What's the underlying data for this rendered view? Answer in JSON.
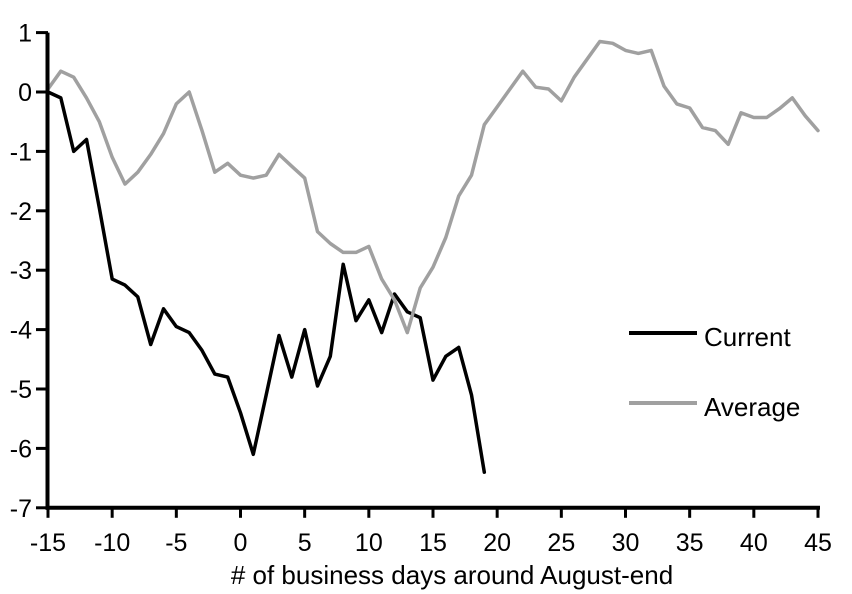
{
  "figure": {
    "background_color": "#ffffff",
    "axis_color": "#000000",
    "text_color": "#000000"
  },
  "chart_data": {
    "type": "line",
    "title": "",
    "xlabel": "# of business days around August-end",
    "ylabel": "",
    "xlim": [
      -15,
      45
    ],
    "ylim": [
      -7,
      1
    ],
    "x_ticks": [
      -15,
      -10,
      -5,
      0,
      5,
      10,
      15,
      20,
      25,
      30,
      35,
      40,
      45
    ],
    "y_ticks": [
      1,
      0,
      -1,
      -2,
      -3,
      -4,
      -5,
      -6,
      -7
    ],
    "grid": false,
    "legend_position": "center-right",
    "series": [
      {
        "name": "Current",
        "color": "#000000",
        "x": [
          -15,
          -14,
          -13,
          -12,
          -11,
          -10,
          -9,
          -8,
          -7,
          -6,
          -5,
          -4,
          -3,
          -2,
          -1,
          0,
          1,
          2,
          3,
          4,
          5,
          6,
          7,
          8,
          9,
          10,
          11,
          12,
          13,
          14,
          15,
          16,
          17,
          18,
          19
        ],
        "values": [
          0,
          -0.1,
          -1.0,
          -0.8,
          -1.95,
          -3.15,
          -3.25,
          -3.45,
          -4.25,
          -3.65,
          -3.95,
          -4.05,
          -4.35,
          -4.75,
          -4.8,
          -5.4,
          -6.1,
          -5.1,
          -4.1,
          -4.8,
          -4.0,
          -4.95,
          -4.45,
          -2.9,
          -3.85,
          -3.5,
          -4.05,
          -3.4,
          -3.7,
          -3.8,
          -4.85,
          -4.45,
          -4.3,
          -5.1,
          -6.4
        ]
      },
      {
        "name": "Average",
        "color": "#a0a0a0",
        "x": [
          -15,
          -14,
          -13,
          -12,
          -11,
          -10,
          -9,
          -8,
          -7,
          -6,
          -5,
          -4,
          -3,
          -2,
          -1,
          0,
          1,
          2,
          3,
          4,
          5,
          6,
          7,
          8,
          9,
          10,
          11,
          12,
          13,
          14,
          15,
          16,
          17,
          18,
          19,
          20,
          21,
          22,
          23,
          24,
          25,
          26,
          27,
          28,
          29,
          30,
          31,
          32,
          33,
          34,
          35,
          36,
          37,
          38,
          39,
          40,
          41,
          42,
          43,
          44,
          45
        ],
        "values": [
          0.05,
          0.35,
          0.25,
          -0.1,
          -0.5,
          -1.1,
          -1.55,
          -1.35,
          -1.05,
          -0.7,
          -0.2,
          0.0,
          -0.65,
          -1.35,
          -1.2,
          -1.4,
          -1.45,
          -1.4,
          -1.05,
          -1.25,
          -1.45,
          -2.35,
          -2.55,
          -2.7,
          -2.7,
          -2.6,
          -3.15,
          -3.5,
          -4.05,
          -3.3,
          -2.95,
          -2.45,
          -1.75,
          -1.4,
          -0.55,
          -0.25,
          0.05,
          0.35,
          0.08,
          0.05,
          -0.15,
          0.25,
          0.55,
          0.85,
          0.82,
          0.7,
          0.65,
          0.7,
          0.1,
          -0.2,
          -0.27,
          -0.6,
          -0.65,
          -0.88,
          -0.35,
          -0.43,
          -0.43,
          -0.28,
          -0.1,
          -0.4,
          -0.65
        ]
      }
    ]
  }
}
